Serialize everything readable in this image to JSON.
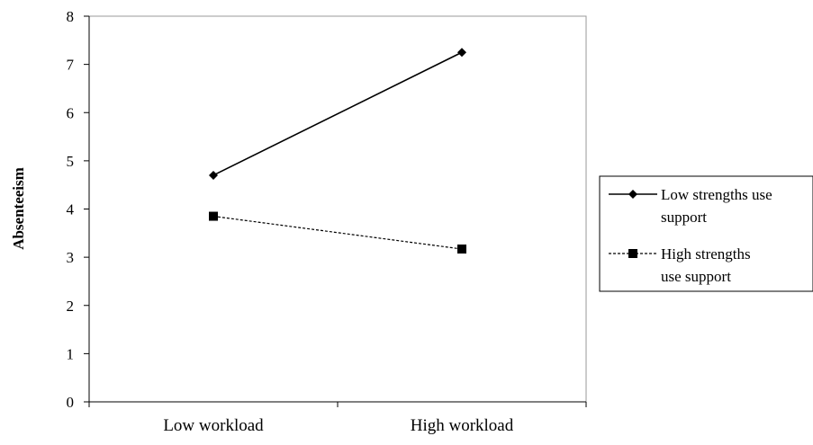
{
  "chart_data": {
    "type": "line",
    "title": "",
    "xlabel": "",
    "ylabel": "Absenteeism",
    "categories": [
      "Low workload",
      "High workload"
    ],
    "ylim": [
      0,
      8
    ],
    "yticks": [
      "0",
      "1",
      "2",
      "3",
      "4",
      "5",
      "6",
      "7",
      "8"
    ],
    "grid": false,
    "legend_position": "right",
    "series": [
      {
        "legend_lines": [
          "Low strengths use",
          "support"
        ],
        "values": [
          4.7,
          7.25
        ],
        "marker": "diamond",
        "line_style": "solid",
        "color": "#000000"
      },
      {
        "legend_lines": [
          "High strengths",
          "use support"
        ],
        "values": [
          3.85,
          3.17
        ],
        "marker": "square",
        "line_style": "dashed",
        "color": "#000000"
      }
    ]
  }
}
